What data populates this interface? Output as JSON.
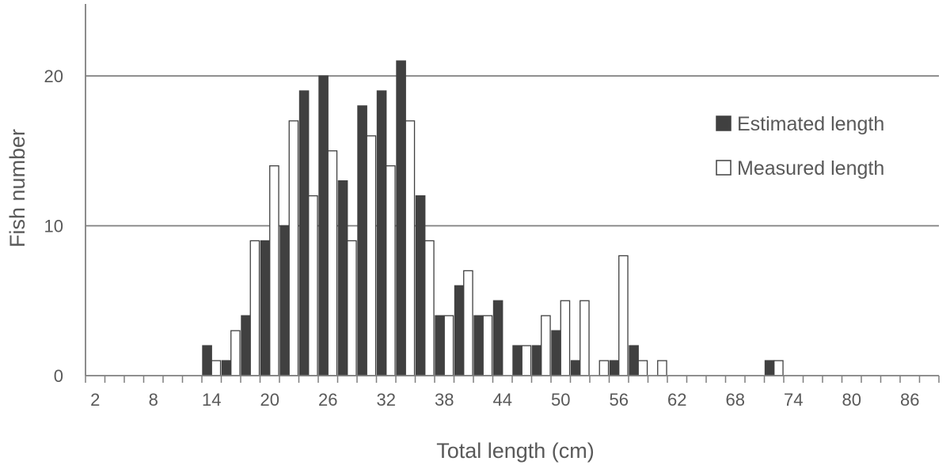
{
  "chart_data": {
    "type": "bar",
    "title": "",
    "xlabel": "Total length (cm)",
    "ylabel": "Fish number",
    "categories": [
      2,
      4,
      6,
      8,
      10,
      12,
      14,
      16,
      18,
      20,
      22,
      24,
      26,
      28,
      30,
      32,
      34,
      36,
      38,
      40,
      42,
      44,
      46,
      48,
      50,
      52,
      54,
      56,
      58,
      60,
      62,
      64,
      66,
      68,
      70,
      72,
      74,
      76,
      78,
      80,
      82,
      84,
      86,
      88
    ],
    "x_tick_labels": [
      "2",
      "8",
      "14",
      "20",
      "26",
      "32",
      "38",
      "44",
      "50",
      "56",
      "62",
      "68",
      "74",
      "80",
      "86"
    ],
    "y_tick_labels": [
      "0",
      "10",
      "20"
    ],
    "ylim": [
      0,
      25
    ],
    "grid": {
      "horizontal": true,
      "values": [
        10,
        20
      ]
    },
    "legend_position": "right",
    "series": [
      {
        "name": "Estimated length",
        "color": "#404040",
        "values": [
          0,
          0,
          0,
          0,
          0,
          0,
          2,
          1,
          4,
          9,
          10,
          19,
          20,
          13,
          18,
          19,
          21,
          12,
          4,
          6,
          4,
          5,
          2,
          2,
          3,
          1,
          0,
          1,
          2,
          0,
          0,
          0,
          0,
          0,
          0,
          1,
          0,
          0,
          0,
          0,
          0,
          0,
          0,
          0
        ]
      },
      {
        "name": "Measured length",
        "color": "#ffffff",
        "values": [
          0,
          0,
          0,
          0,
          0,
          0,
          1,
          3,
          9,
          14,
          17,
          12,
          15,
          9,
          16,
          14,
          17,
          9,
          4,
          7,
          4,
          0,
          2,
          4,
          5,
          5,
          1,
          8,
          1,
          1,
          0,
          0,
          0,
          0,
          0,
          1,
          0,
          0,
          0,
          0,
          0,
          0,
          0,
          0
        ]
      }
    ]
  }
}
